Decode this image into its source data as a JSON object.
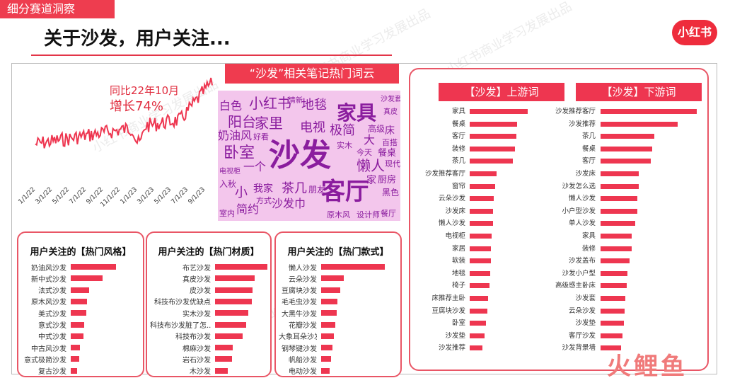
{
  "header": {
    "tag": "细分赛道洞察",
    "title": "关于沙发，用户关注...",
    "logo": "小红书"
  },
  "trend": {
    "label_line1": "同比22年10月",
    "label_line2": "增长74%",
    "x_ticks": [
      "1/1/22",
      "3/1/22",
      "5/1/22",
      "7/1/22",
      "9/1/22",
      "11/1/22",
      "1/1/23",
      "3/1/23",
      "5/1/23",
      "7/1/23",
      "9/1/23"
    ]
  },
  "cloud": {
    "title": "“沙发”相关笔记热门词云",
    "words": [
      {
        "t": "沙发",
        "s": 44,
        "c": "#8a1c9e",
        "x": 72,
        "y": 70,
        "b": true
      },
      {
        "t": "客厅",
        "s": 34,
        "c": "#8a1c9e",
        "x": 146,
        "y": 126,
        "b": true
      },
      {
        "t": "家具",
        "s": 28,
        "c": "#8a1c9e",
        "x": 168,
        "y": 18,
        "b": true
      },
      {
        "t": "小红书",
        "s": 20,
        "c": "#8a1c9e",
        "x": 44,
        "y": 8,
        "b": false
      },
      {
        "t": "白色",
        "s": 16,
        "c": "#8a1c9e",
        "x": 2,
        "y": 14,
        "b": false
      },
      {
        "t": "地毯",
        "s": 18,
        "c": "#8a1c9e",
        "x": 118,
        "y": 12,
        "b": false
      },
      {
        "t": "家里",
        "s": 20,
        "c": "#8a1c9e",
        "x": 52,
        "y": 36,
        "b": false
      },
      {
        "t": "电视",
        "s": 18,
        "c": "#8a1c9e",
        "x": 116,
        "y": 44,
        "b": false
      },
      {
        "t": "极简",
        "s": 18,
        "c": "#8a1c9e",
        "x": 158,
        "y": 48,
        "b": false
      },
      {
        "t": "阳台",
        "s": 20,
        "c": "#8a1c9e",
        "x": 14,
        "y": 34,
        "b": false
      },
      {
        "t": "奶油风",
        "s": 16,
        "c": "#8a1c9e",
        "x": 0,
        "y": 56,
        "b": false
      },
      {
        "t": "卧室",
        "s": 22,
        "c": "#8a1c9e",
        "x": 8,
        "y": 78,
        "b": false
      },
      {
        "t": "懒人",
        "s": 20,
        "c": "#8a1c9e",
        "x": 196,
        "y": 96,
        "b": false
      },
      {
        "t": "我家",
        "s": 14,
        "c": "#8a1c9e",
        "x": 50,
        "y": 132,
        "b": false
      },
      {
        "t": "茶几",
        "s": 18,
        "c": "#8a1c9e",
        "x": 90,
        "y": 130,
        "b": false
      },
      {
        "t": "沙发巾",
        "s": 16,
        "c": "#8a1c9e",
        "x": 76,
        "y": 152,
        "b": false
      },
      {
        "t": "简约",
        "s": 16,
        "c": "#8a1c9e",
        "x": 26,
        "y": 160,
        "b": false
      },
      {
        "t": "小",
        "s": 18,
        "c": "#8a1c9e",
        "x": 24,
        "y": 136,
        "b": false
      },
      {
        "t": "厨房",
        "s": 13,
        "c": "#8a1c9e",
        "x": 226,
        "y": 120,
        "b": false
      },
      {
        "t": "餐桌",
        "s": 13,
        "c": "#8a1c9e",
        "x": 226,
        "y": 82,
        "b": false
      },
      {
        "t": "家",
        "s": 14,
        "c": "#8a1c9e",
        "x": 210,
        "y": 120,
        "b": false
      },
      {
        "t": "大",
        "s": 16,
        "c": "#8a1c9e",
        "x": 206,
        "y": 62,
        "b": false
      },
      {
        "t": "床",
        "s": 14,
        "c": "#8a1c9e",
        "x": 236,
        "y": 50,
        "b": false
      },
      {
        "t": "黑色",
        "s": 12,
        "c": "#8a1c9e",
        "x": 232,
        "y": 138,
        "b": false
      },
      {
        "t": "餐厅",
        "s": 11,
        "c": "#8a1c9e",
        "x": 230,
        "y": 168,
        "b": false
      },
      {
        "t": "设计师",
        "s": 11,
        "c": "#8a1c9e",
        "x": 196,
        "y": 170,
        "b": false
      },
      {
        "t": "原木风",
        "s": 11,
        "c": "#8a1c9e",
        "x": 154,
        "y": 170,
        "b": false
      },
      {
        "t": "室内",
        "s": 11,
        "c": "#8a1c9e",
        "x": 2,
        "y": 168,
        "b": false
      },
      {
        "t": "朋友",
        "s": 12,
        "c": "#8a1c9e",
        "x": 128,
        "y": 134,
        "b": false
      },
      {
        "t": "入秋",
        "s": 12,
        "c": "#8a1c9e",
        "x": 2,
        "y": 126,
        "b": false
      },
      {
        "t": "高级",
        "s": 12,
        "c": "#8a1c9e",
        "x": 212,
        "y": 48,
        "b": false
      },
      {
        "t": "今天",
        "s": 11,
        "c": "#8a1c9e",
        "x": 196,
        "y": 82,
        "b": false
      },
      {
        "t": "现代",
        "s": 11,
        "c": "#8a1c9e",
        "x": 236,
        "y": 98,
        "b": false
      },
      {
        "t": "百搭",
        "s": 11,
        "c": "#8a1c9e",
        "x": 232,
        "y": 68,
        "b": false
      },
      {
        "t": "一个",
        "s": 16,
        "c": "#8a1c9e",
        "x": 36,
        "y": 100,
        "b": false
      },
      {
        "t": "方式",
        "s": 11,
        "c": "#8a1c9e",
        "x": 54,
        "y": 150,
        "b": false
      },
      {
        "t": "电视柜",
        "s": 10,
        "c": "#8a1c9e",
        "x": 2,
        "y": 110,
        "b": false
      },
      {
        "t": "清新",
        "s": 10,
        "c": "#8a1c9e",
        "x": 100,
        "y": 10,
        "b": false
      },
      {
        "t": "沙发套",
        "s": 10,
        "c": "#8a1c9e",
        "x": 230,
        "y": 8,
        "b": false
      },
      {
        "t": "真皮",
        "s": 10,
        "c": "#8a1c9e",
        "x": 234,
        "y": 26,
        "b": false
      },
      {
        "t": "实木",
        "s": 11,
        "c": "#8a1c9e",
        "x": 168,
        "y": 72,
        "b": false
      },
      {
        "t": "好看",
        "s": 11,
        "c": "#8a1c9e",
        "x": 50,
        "y": 60,
        "b": false
      }
    ]
  },
  "style_panel": {
    "title": "用户关注的【热门风格】",
    "items": [
      {
        "label": "奶油风沙发",
        "value": 100
      },
      {
        "label": "新中式沙发",
        "value": 70
      },
      {
        "label": "法式沙发",
        "value": 40
      },
      {
        "label": "原木风沙发",
        "value": 36
      },
      {
        "label": "美式沙发",
        "value": 34
      },
      {
        "label": "意式沙发",
        "value": 30
      },
      {
        "label": "中式沙发",
        "value": 28
      },
      {
        "label": "中古风沙发",
        "value": 20
      },
      {
        "label": "意式极简沙发",
        "value": 18
      },
      {
        "label": "复古沙发",
        "value": 14
      }
    ]
  },
  "material_panel": {
    "title": "用户关注的【热门材质】",
    "items": [
      {
        "label": "布艺沙发",
        "value": 100
      },
      {
        "label": "真皮沙发",
        "value": 75
      },
      {
        "label": "皮沙发",
        "value": 71
      },
      {
        "label": "科技布沙发优缺点",
        "value": 70
      },
      {
        "label": "实木沙发",
        "value": 64
      },
      {
        "label": "科技布沙发脏了怎...",
        "value": 60
      },
      {
        "label": "科技布沙发",
        "value": 53
      },
      {
        "label": "棉麻沙发",
        "value": 34
      },
      {
        "label": "岩石沙发",
        "value": 32
      },
      {
        "label": "木沙发",
        "value": 24
      }
    ]
  },
  "type_panel": {
    "title": "用户关注的【热门款式】",
    "items": [
      {
        "label": "懒人沙发",
        "value": 100
      },
      {
        "label": "云朵沙发",
        "value": 35
      },
      {
        "label": "豆腐块沙发",
        "value": 30
      },
      {
        "label": "毛毛虫沙发",
        "value": 26
      },
      {
        "label": "大黑牛沙发",
        "value": 24
      },
      {
        "label": "花瓣沙发",
        "value": 22
      },
      {
        "label": "大象耳朵沙发",
        "value": 20
      },
      {
        "label": "钢琴键沙发",
        "value": 18
      },
      {
        "label": "帆船沙发",
        "value": 15
      },
      {
        "label": "电动沙发",
        "value": 13
      }
    ]
  },
  "upstream": {
    "title": "【沙发】上游词",
    "items": [
      {
        "label": "家具",
        "value": 100
      },
      {
        "label": "餐桌",
        "value": 82
      },
      {
        "label": "客厅",
        "value": 80
      },
      {
        "label": "装修",
        "value": 78
      },
      {
        "label": "茶几",
        "value": 74
      },
      {
        "label": "沙发推荐客厅",
        "value": 46
      },
      {
        "label": "窗帘",
        "value": 44
      },
      {
        "label": "云朵沙发",
        "value": 42
      },
      {
        "label": "沙发床",
        "value": 40
      },
      {
        "label": "懒人沙发",
        "value": 40
      },
      {
        "label": "电视柜",
        "value": 38
      },
      {
        "label": "家居",
        "value": 37
      },
      {
        "label": "软装",
        "value": 36
      },
      {
        "label": "地毯",
        "value": 35
      },
      {
        "label": "椅子",
        "value": 34
      },
      {
        "label": "床推荐主卧",
        "value": 32
      },
      {
        "label": "豆腐块沙发",
        "value": 30
      },
      {
        "label": "卧室",
        "value": 28
      },
      {
        "label": "沙发垫",
        "value": 26
      },
      {
        "label": "沙发推荐",
        "value": 22
      }
    ]
  },
  "downstream": {
    "title": "【沙发】下游词",
    "items": [
      {
        "label": "沙发推荐客厅",
        "value": 100
      },
      {
        "label": "沙发推荐",
        "value": 80
      },
      {
        "label": "茶几",
        "value": 56
      },
      {
        "label": "餐桌",
        "value": 54
      },
      {
        "label": "客厅",
        "value": 52
      },
      {
        "label": "沙发床",
        "value": 40
      },
      {
        "label": "沙发怎么选",
        "value": 40
      },
      {
        "label": "懒人沙发",
        "value": 38
      },
      {
        "label": "小户型沙发",
        "value": 38
      },
      {
        "label": "单人沙发",
        "value": 36
      },
      {
        "label": "家具",
        "value": 32
      },
      {
        "label": "装修",
        "value": 32
      },
      {
        "label": "沙发盖布",
        "value": 30
      },
      {
        "label": "沙发小户型",
        "value": 28
      },
      {
        "label": "高级感主卧床",
        "value": 27
      },
      {
        "label": "沙发套",
        "value": 26
      },
      {
        "label": "云朵沙发",
        "value": 25
      },
      {
        "label": "沙发垫",
        "value": 24
      },
      {
        "label": "客厅沙发",
        "value": 23
      },
      {
        "label": "沙发背景墙",
        "value": 21
      }
    ]
  },
  "watermark": "小红书商业学习发展出品",
  "brand": "火鲤鱼",
  "colors": {
    "accent": "#ee3650",
    "cloud_bg": "#f3c6ec",
    "cloud_text": "#8a1c9e"
  }
}
